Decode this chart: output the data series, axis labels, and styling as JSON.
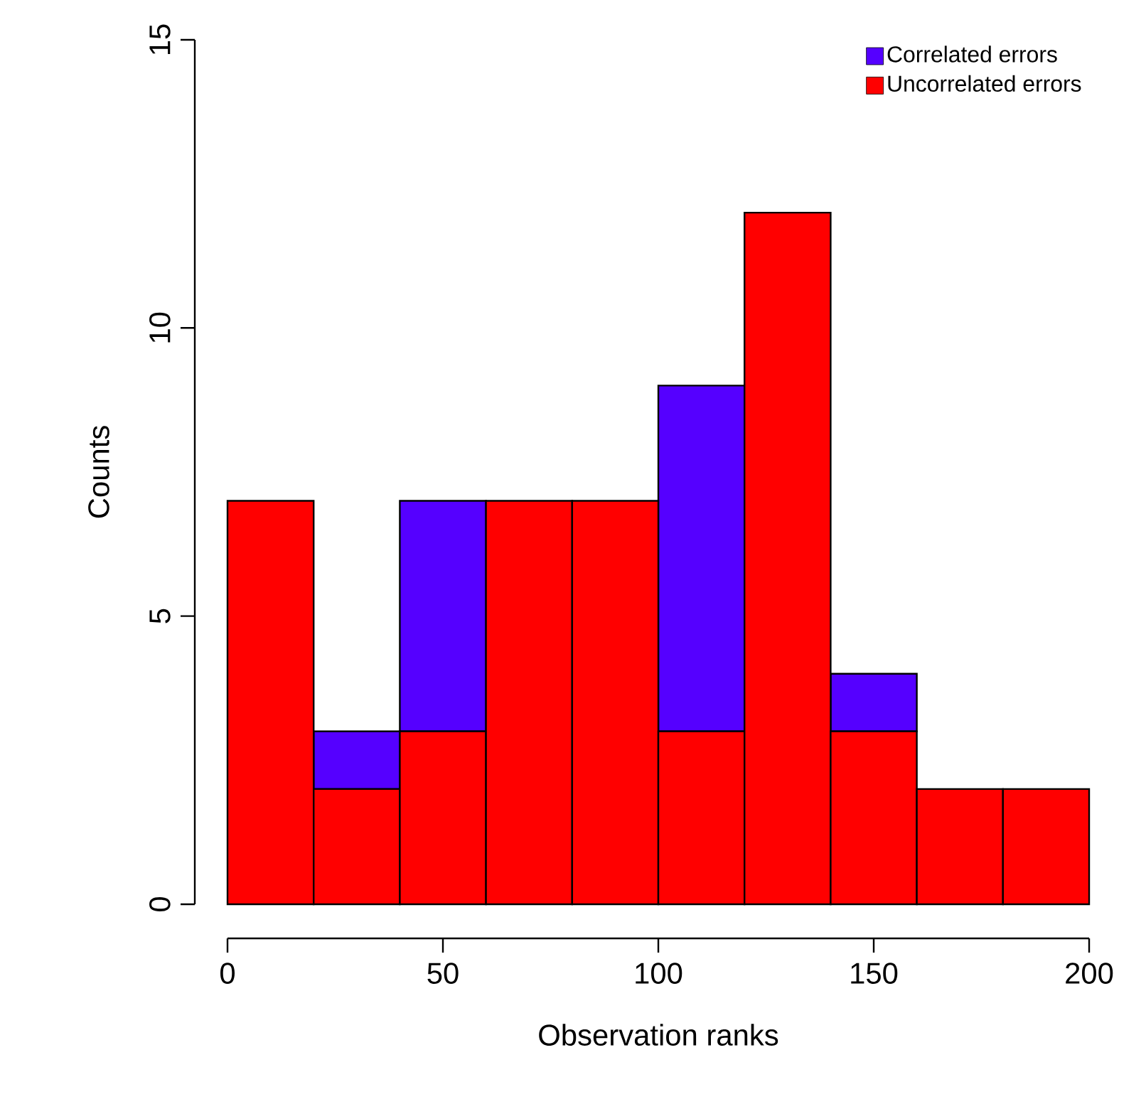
{
  "chart_data": {
    "type": "bar",
    "xlabel": "Observation ranks",
    "ylabel": "Counts",
    "x": [
      10,
      30,
      50,
      70,
      90,
      110,
      130,
      150,
      170,
      190
    ],
    "stacked": true,
    "series": [
      {
        "name": "Uncorrelated errors",
        "color": "#ff0000",
        "values": [
          7,
          2,
          3,
          7,
          7,
          3,
          12,
          3,
          2,
          2
        ]
      },
      {
        "name": "Correlated errors",
        "color": "#5500ff",
        "values": [
          0,
          1,
          4,
          0,
          0,
          6,
          0,
          1,
          0,
          0
        ]
      }
    ],
    "xlim": [
      0,
      200
    ],
    "ylim": [
      0,
      15
    ],
    "xticks": [
      0,
      50,
      100,
      150,
      200
    ],
    "yticks": [
      0,
      5,
      10,
      15
    ],
    "legend": "top right",
    "grid": false
  }
}
